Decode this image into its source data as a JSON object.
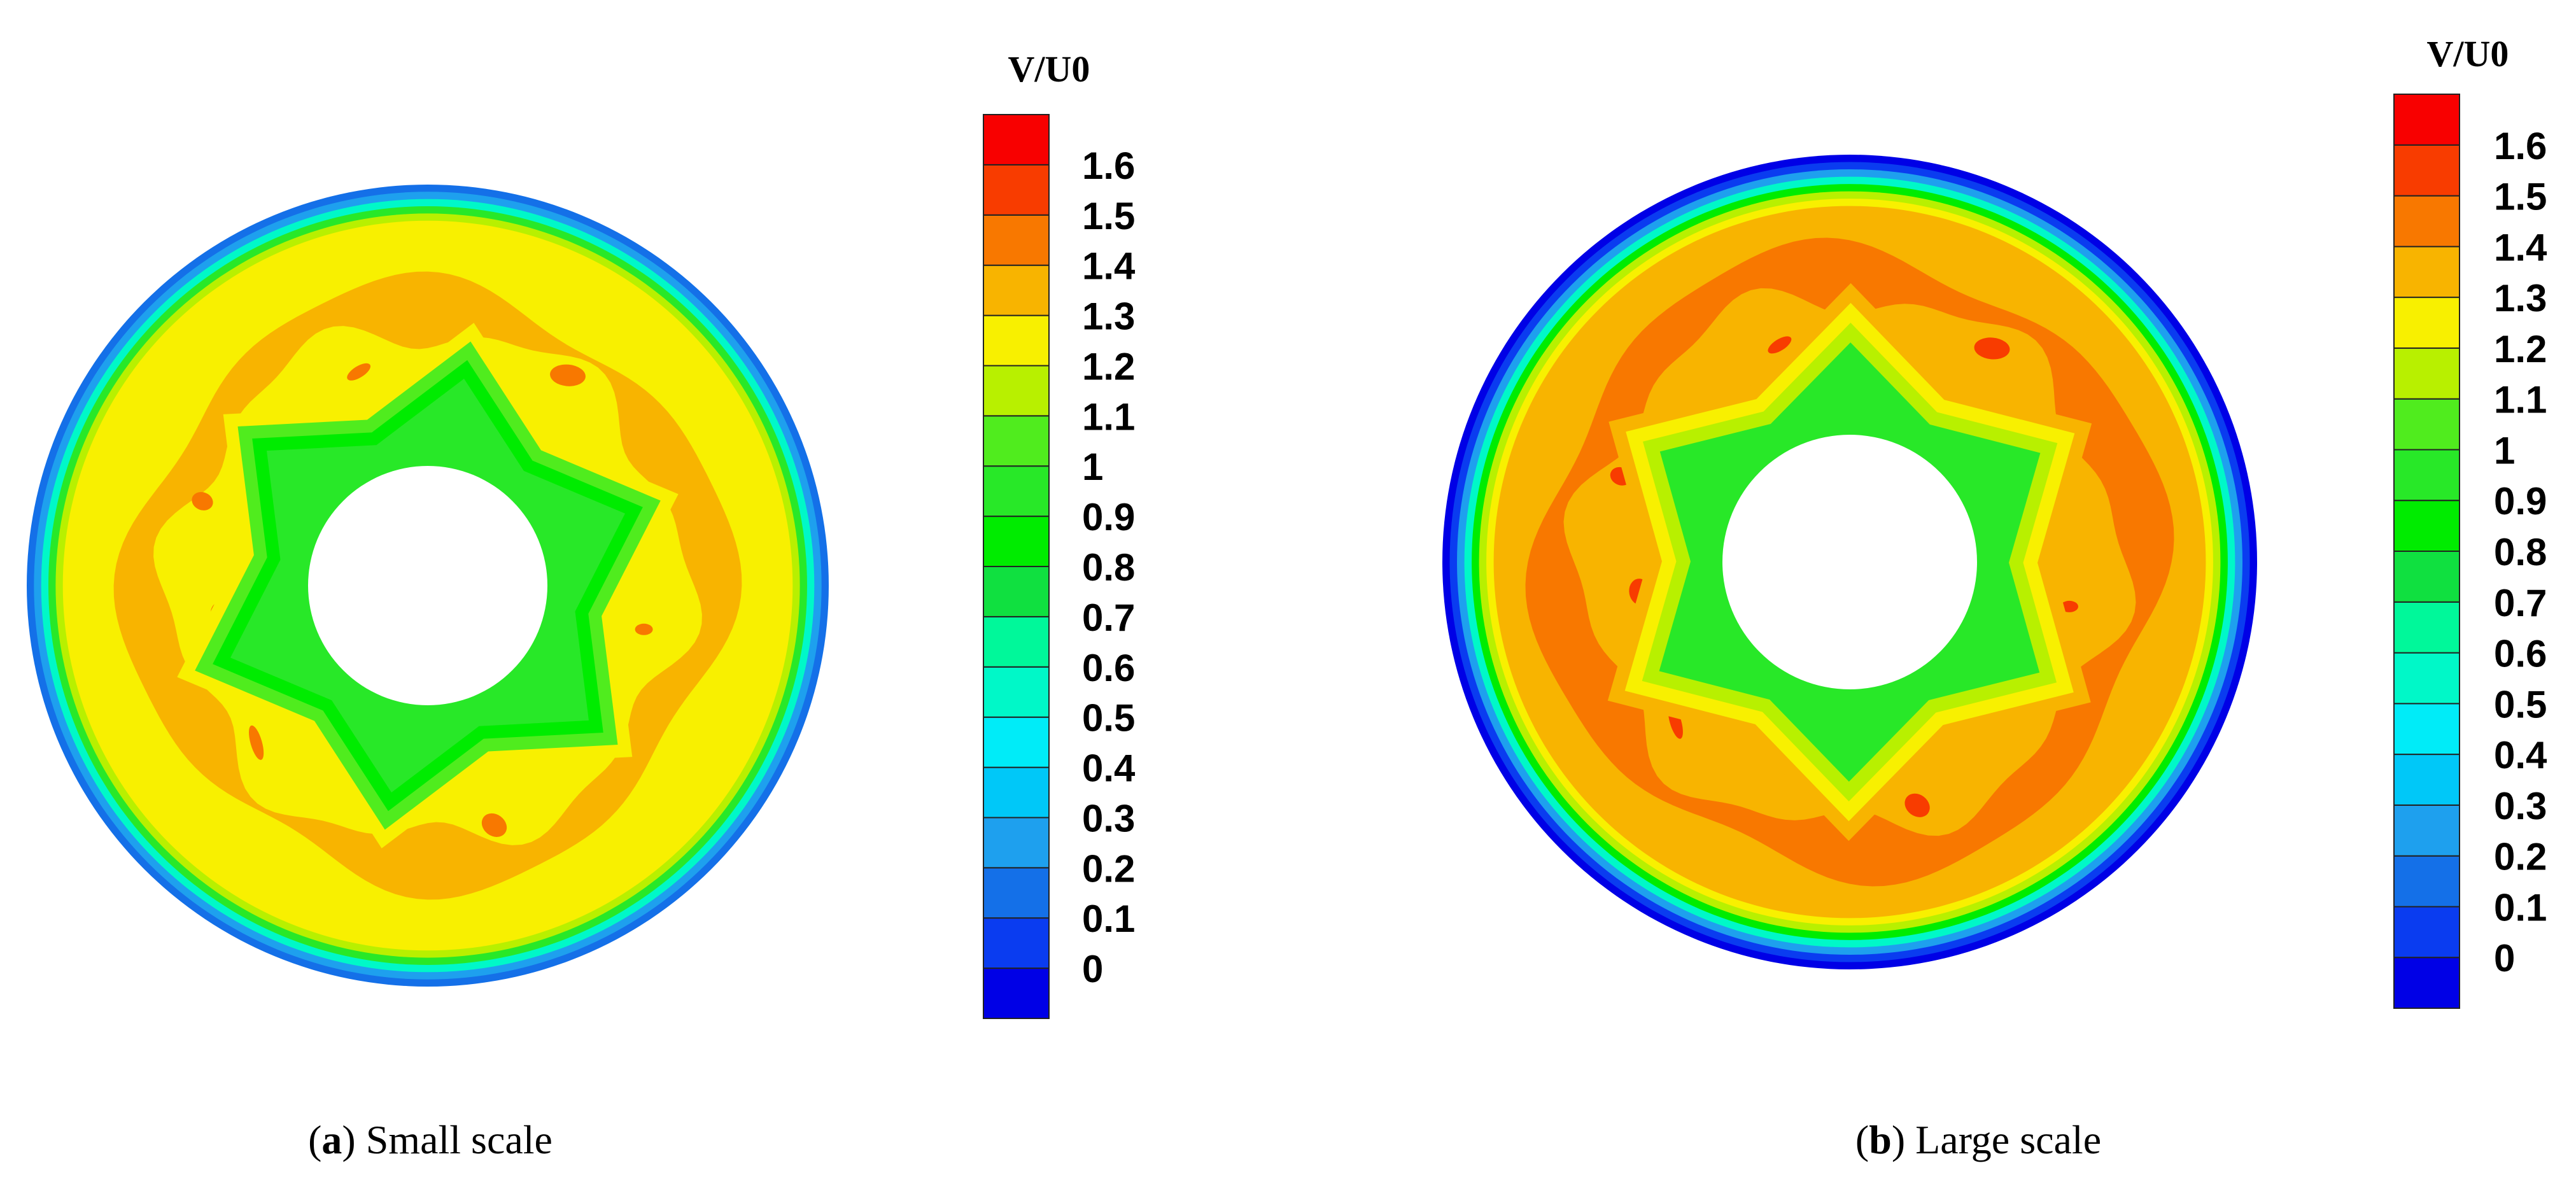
{
  "chart_data": [
    {
      "type": "heatmap",
      "panel": "a",
      "caption_letter": "a",
      "caption_text": "Small scale",
      "legend_title": "V/U0",
      "levels": [
        "0",
        "0.1",
        "0.2",
        "0.3",
        "0.4",
        "0.5",
        "0.6",
        "0.7",
        "0.8",
        "0.9",
        "1",
        "1.1",
        "1.2",
        "1.3",
        "1.4",
        "1.5",
        "1.6"
      ],
      "colors": [
        "#0000e6",
        "#0a3cf0",
        "#1470e8",
        "#1ea0ee",
        "#00c8f8",
        "#00ecf8",
        "#00f8c8",
        "#00f89a",
        "#10e040",
        "#00ec00",
        "#28e828",
        "#50ec1e",
        "#b8f000",
        "#f8f000",
        "#f8b400",
        "#f87800",
        "#f83c00",
        "#f80000"
      ],
      "field": {
        "rim": [
          0.25,
          0.35,
          0.65,
          1.05,
          1.25
        ],
        "bulk": 1.45,
        "peak": 1.55,
        "hub": [
          1.0,
          0.95,
          1.15,
          1.35
        ]
      }
    },
    {
      "type": "heatmap",
      "panel": "b",
      "caption_letter": "b",
      "caption_text": "Large scale",
      "legend_title": "V/U0",
      "levels": [
        "0",
        "0.1",
        "0.2",
        "0.3",
        "0.4",
        "0.5",
        "0.6",
        "0.7",
        "0.8",
        "0.9",
        "1",
        "1.1",
        "1.2",
        "1.3",
        "1.4",
        "1.5",
        "1.6"
      ],
      "colors": [
        "#0000e6",
        "#0a3cf0",
        "#1470e8",
        "#1ea0ee",
        "#00c8f8",
        "#00ecf8",
        "#00f8c8",
        "#00f89a",
        "#10e040",
        "#00ec00",
        "#28e828",
        "#50ec1e",
        "#b8f000",
        "#f8f000",
        "#f8b400",
        "#f87800",
        "#f83c00",
        "#f80000"
      ],
      "field": {
        "rim": [
          0.05,
          0.15,
          0.35,
          0.65,
          0.95,
          1.25,
          1.35
        ],
        "bulk": 1.55,
        "peak": 1.65,
        "hub": [
          1.05,
          1.25,
          1.35,
          1.45
        ]
      }
    }
  ]
}
